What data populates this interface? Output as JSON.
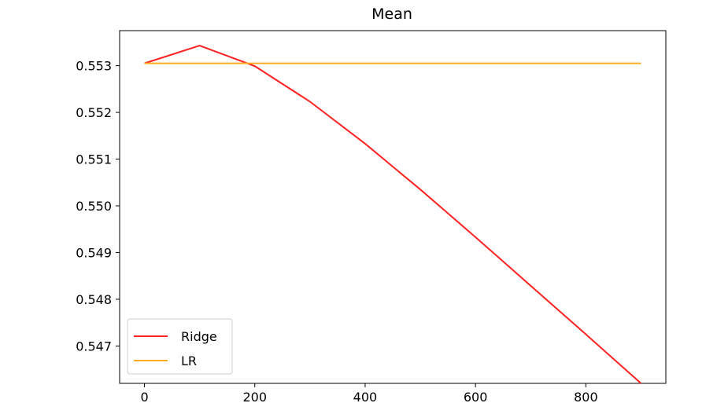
{
  "chart_data": {
    "type": "line",
    "title": "Mean",
    "xlabel": "",
    "ylabel": "",
    "x": [
      0,
      100,
      200,
      300,
      400,
      500,
      600,
      700,
      800,
      900
    ],
    "series": [
      {
        "name": "Ridge",
        "color": "#ff2020",
        "values": [
          0.55305,
          0.55343,
          0.55299,
          0.55223,
          0.55133,
          0.55035,
          0.54933,
          0.54829,
          0.54725,
          0.5462
        ]
      },
      {
        "name": "LR",
        "color": "#ffaa22",
        "values": [
          0.55305,
          0.55305,
          0.55305,
          0.55305,
          0.55305,
          0.55305,
          0.55305,
          0.55305,
          0.55305,
          0.55305
        ]
      }
    ],
    "xlim": [
      -45,
      945
    ],
    "ylim": [
      0.5462,
      0.55375
    ],
    "x_ticks": [
      0,
      200,
      400,
      600,
      800
    ],
    "x_tick_labels": [
      "0",
      "200",
      "400",
      "600",
      "800"
    ],
    "y_ticks": [
      0.547,
      0.548,
      0.549,
      0.55,
      0.551,
      0.552,
      0.553
    ],
    "y_tick_labels": [
      "0.547",
      "0.548",
      "0.549",
      "0.550",
      "0.551",
      "0.552",
      "0.553"
    ],
    "grid": false,
    "legend_position": "lower-left"
  }
}
